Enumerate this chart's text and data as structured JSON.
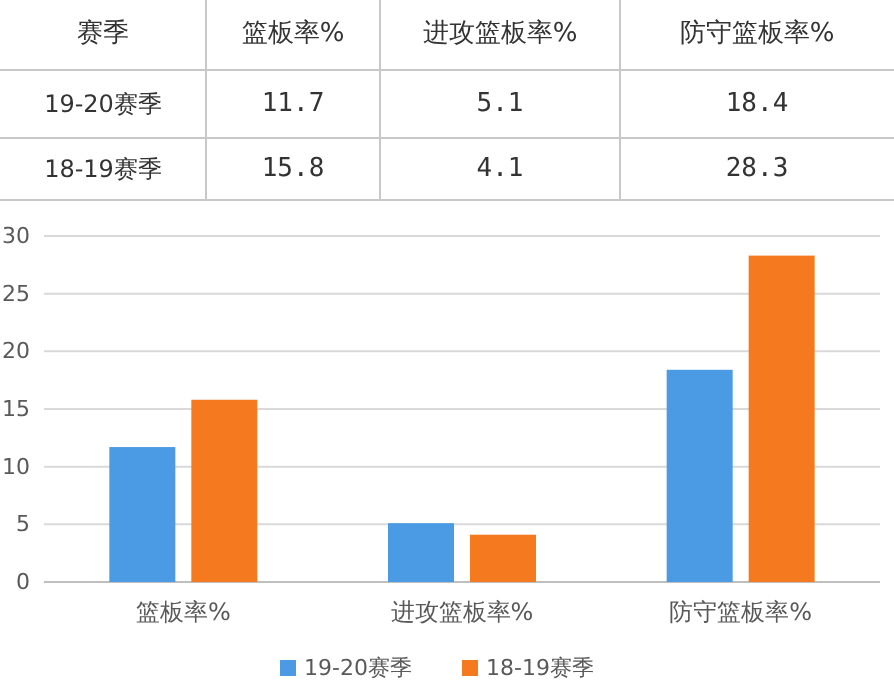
{
  "chart_data": {
    "type": "bar",
    "categories": [
      "篮板率%",
      "进攻篮板率%",
      "防守篮板率%"
    ],
    "series": [
      {
        "name": "19-20赛季",
        "color": "#4a9be3",
        "values": [
          11.7,
          5.1,
          18.4
        ]
      },
      {
        "name": "18-19赛季",
        "color": "#f5791f",
        "values": [
          15.8,
          4.1,
          28.3
        ]
      }
    ],
    "ylim": [
      0,
      30
    ],
    "yticks": [
      0,
      5,
      10,
      15,
      20,
      25,
      30
    ],
    "grid": "y",
    "legend": "bottom",
    "data_labels": true,
    "annotations": [
      "赛季"
    ]
  }
}
